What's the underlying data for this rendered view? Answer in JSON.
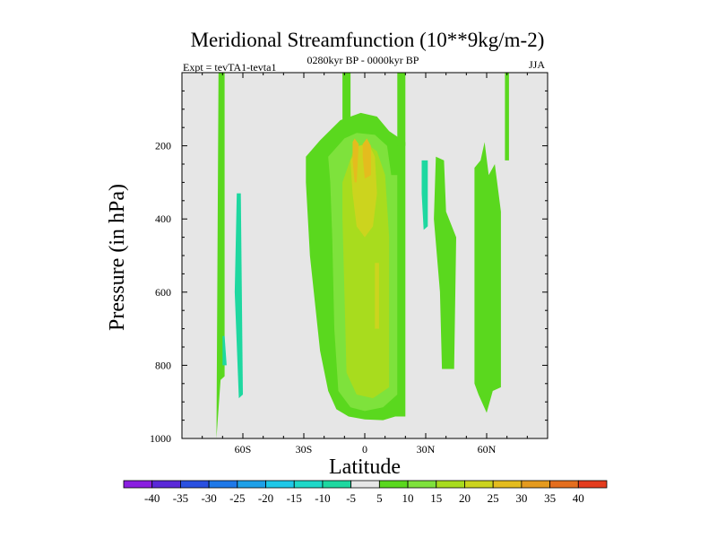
{
  "chart_data": {
    "type": "contour",
    "title": "Meridional Streamfunction (10**9kg/m-2)",
    "left_label": "Expt = tevTA1-tevta1",
    "center_label": "0280kyr BP - 0000kyr BP",
    "right_label": "JJA",
    "xlabel": "Latitude",
    "ylabel": "Pressure (in hPa)",
    "xlim": [
      -90,
      90
    ],
    "ylim": [
      1000,
      0
    ],
    "x_ticks": [
      {
        "value": -60,
        "label": "60S"
      },
      {
        "value": -30,
        "label": "30S"
      },
      {
        "value": 0,
        "label": "0"
      },
      {
        "value": 30,
        "label": "30N"
      },
      {
        "value": 60,
        "label": "60N"
      }
    ],
    "y_ticks": [
      {
        "value": 200,
        "label": "200"
      },
      {
        "value": 400,
        "label": "400"
      },
      {
        "value": 600,
        "label": "600"
      },
      {
        "value": 800,
        "label": "800"
      },
      {
        "value": 1000,
        "label": "1000"
      }
    ],
    "background_value_color": "#e6e6e6",
    "colorbar": {
      "levels": [
        -40,
        -35,
        -30,
        -25,
        -20,
        -15,
        -10,
        -5,
        5,
        10,
        15,
        20,
        25,
        30,
        35,
        40
      ],
      "labels": [
        "-40",
        "-35",
        "-30",
        "-25",
        "-20",
        "-15",
        "-10",
        "-5",
        "5",
        "10",
        "15",
        "20",
        "25",
        "30",
        "35",
        "40"
      ],
      "colors": [
        "#8a1ee0",
        "#5a28d8",
        "#2a50e0",
        "#1e78e8",
        "#1ea0e8",
        "#1ec8e8",
        "#1ed8c8",
        "#1ed8a0",
        "#e6e6e6",
        "#5ad81e",
        "#7ee23c",
        "#a8dc1e",
        "#ccd41e",
        "#e4bc1e",
        "#e49a1e",
        "#e46e1e",
        "#e43c1e"
      ]
    },
    "regions": [
      {
        "level": "5",
        "color": "#5ad81e",
        "points": [
          [
            -73,
            1000
          ],
          [
            -72,
            0
          ],
          [
            -69,
            0
          ],
          [
            -69,
            830
          ],
          [
            -71,
            840
          ]
        ]
      },
      {
        "level": "-5",
        "color": "#1ed8a0",
        "points": [
          [
            -63,
            330
          ],
          [
            -61,
            330
          ],
          [
            -60,
            880
          ],
          [
            -62,
            890
          ],
          [
            -64,
            600
          ]
        ]
      },
      {
        "level": "-5",
        "color": "#1ed8a0",
        "points": [
          [
            -70,
            720
          ],
          [
            -69,
            720
          ],
          [
            -68,
            800
          ],
          [
            -70,
            800
          ]
        ]
      },
      {
        "level": "5",
        "color": "#5ad81e",
        "points": [
          [
            -29,
            230
          ],
          [
            -22,
            185
          ],
          [
            -12,
            130
          ],
          [
            -2,
            110
          ],
          [
            6,
            120
          ],
          [
            12,
            160
          ],
          [
            20,
            190
          ],
          [
            20,
            940
          ],
          [
            15,
            940
          ],
          [
            9,
            950
          ],
          [
            0,
            948
          ],
          [
            -8,
            940
          ],
          [
            -14,
            920
          ],
          [
            -18,
            870
          ],
          [
            -22,
            760
          ],
          [
            -27,
            500
          ],
          [
            -29,
            300
          ]
        ]
      },
      {
        "level": "5",
        "color": "#5ad81e",
        "points": [
          [
            -11,
            0
          ],
          [
            -7,
            0
          ],
          [
            -7,
            150
          ],
          [
            -11,
            150
          ]
        ]
      },
      {
        "level": "5",
        "color": "#5ad81e",
        "points": [
          [
            16,
            0
          ],
          [
            20,
            0
          ],
          [
            20,
            200
          ],
          [
            16,
            200
          ]
        ]
      },
      {
        "level": "5",
        "color": "#5ad81e",
        "points": [
          [
            -16,
            330
          ],
          [
            -14,
            330
          ],
          [
            -13,
            350
          ],
          [
            -15,
            380
          ],
          [
            -17,
            360
          ]
        ]
      },
      {
        "level": "10",
        "color": "#7ee23c",
        "points": [
          [
            -18,
            230
          ],
          [
            -10,
            180
          ],
          [
            -4,
            165
          ],
          [
            5,
            170
          ],
          [
            11,
            200
          ],
          [
            13,
            280
          ],
          [
            16,
            280
          ],
          [
            16,
            880
          ],
          [
            9,
            915
          ],
          [
            0,
            925
          ],
          [
            -7,
            915
          ],
          [
            -13,
            870
          ],
          [
            -15,
            700
          ],
          [
            -16,
            450
          ],
          [
            -17,
            300
          ]
        ]
      },
      {
        "level": "15",
        "color": "#a8dc1e",
        "points": [
          [
            -11,
            300
          ],
          [
            -6,
            220
          ],
          [
            0,
            190
          ],
          [
            6,
            215
          ],
          [
            10,
            280
          ],
          [
            12,
            450
          ],
          [
            12,
            860
          ],
          [
            4,
            890
          ],
          [
            -4,
            880
          ],
          [
            -9,
            820
          ],
          [
            -10,
            600
          ],
          [
            -11,
            400
          ]
        ]
      },
      {
        "level": "20",
        "color": "#ccd41e",
        "points": [
          [
            -7,
            240
          ],
          [
            -3,
            200
          ],
          [
            2,
            195
          ],
          [
            5,
            230
          ],
          [
            6,
            330
          ],
          [
            4,
            420
          ],
          [
            0,
            450
          ],
          [
            -4,
            420
          ],
          [
            -6,
            330
          ]
        ]
      },
      {
        "level": "20",
        "color": "#ccd41e",
        "points": [
          [
            5,
            520
          ],
          [
            7,
            520
          ],
          [
            7,
            700
          ],
          [
            5,
            700
          ]
        ]
      },
      {
        "level": "25",
        "color": "#e4bc1e",
        "points": [
          [
            -6,
            190
          ],
          [
            -5,
            180
          ],
          [
            -3,
            195
          ],
          [
            -4,
            300
          ],
          [
            -5,
            300
          ],
          [
            -6,
            240
          ]
        ]
      },
      {
        "level": "25",
        "color": "#e4bc1e",
        "points": [
          [
            -1,
            195
          ],
          [
            1,
            180
          ],
          [
            3,
            200
          ],
          [
            3,
            280
          ],
          [
            0,
            290
          ],
          [
            -1,
            230
          ]
        ]
      },
      {
        "level": "-5",
        "color": "#1ed8a0",
        "points": [
          [
            28,
            240
          ],
          [
            31,
            240
          ],
          [
            31,
            420
          ],
          [
            29,
            430
          ],
          [
            28,
            330
          ]
        ]
      },
      {
        "level": "-5",
        "color": "#1ed8a0",
        "points": [
          [
            38,
            400
          ],
          [
            41,
            400
          ],
          [
            43,
            500
          ],
          [
            42,
            800
          ],
          [
            38,
            800
          ],
          [
            38,
            600
          ]
        ]
      },
      {
        "level": "5",
        "color": "#5ad81e",
        "points": [
          [
            35,
            230
          ],
          [
            39,
            240
          ],
          [
            40,
            380
          ],
          [
            45,
            450
          ],
          [
            44,
            810
          ],
          [
            38,
            810
          ],
          [
            37,
            600
          ],
          [
            34,
            400
          ]
        ]
      },
      {
        "level": "5",
        "color": "#5ad81e",
        "points": [
          [
            54,
            260
          ],
          [
            57,
            240
          ],
          [
            59,
            190
          ],
          [
            61,
            280
          ],
          [
            64,
            250
          ],
          [
            67,
            380
          ],
          [
            67,
            860
          ],
          [
            63,
            870
          ],
          [
            60,
            930
          ],
          [
            56,
            880
          ],
          [
            54,
            850
          ]
        ]
      },
      {
        "level": "5",
        "color": "#5ad81e",
        "points": [
          [
            69,
            0
          ],
          [
            71,
            0
          ],
          [
            71,
            240
          ],
          [
            69,
            240
          ]
        ]
      }
    ]
  }
}
